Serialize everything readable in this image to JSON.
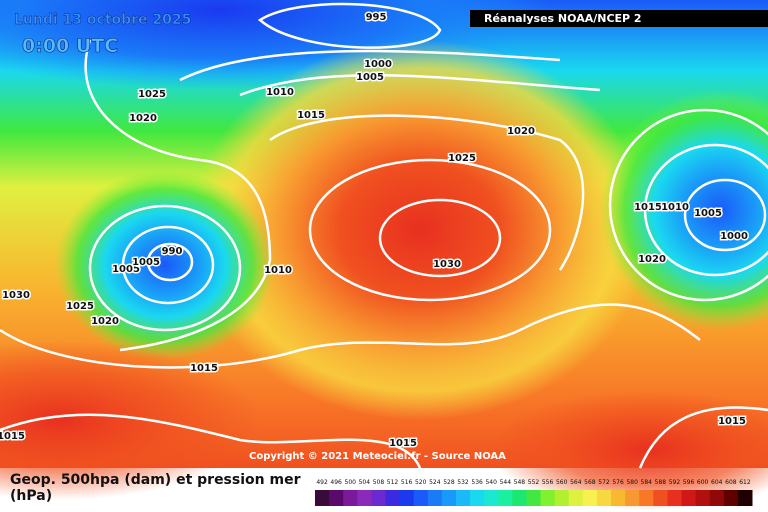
{
  "header": {
    "date": "Lundi 13 octobre 2025",
    "time": "0:00 UTC",
    "source_badge": "Réanalyses NOAA/NCEP 2"
  },
  "isobar_labels": [
    995,
    1000,
    1005,
    1010,
    1015,
    1020,
    1025,
    1020,
    1025,
    1015,
    1010,
    1005,
    1000,
    1020,
    990,
    1005,
    1005,
    1010,
    1030,
    1030,
    1025,
    1020,
    1015,
    1015,
    1015,
    1015
  ],
  "copyright": "Copyright © 2021 Meteociel.fr - Source NOAA",
  "legend": {
    "title": "Geop. 500hpa (dam) et pression mer (hPa)",
    "scale": [
      {
        "value": 492,
        "color": "#3a0a3a"
      },
      {
        "value": 496,
        "color": "#5a0a6a"
      },
      {
        "value": 500,
        "color": "#7a1a9a"
      },
      {
        "value": 504,
        "color": "#8a2aba"
      },
      {
        "value": 508,
        "color": "#6a2ad0"
      },
      {
        "value": 512,
        "color": "#3a2ae0"
      },
      {
        "value": 516,
        "color": "#1a3af0"
      },
      {
        "value": 520,
        "color": "#1a5af8"
      },
      {
        "value": 524,
        "color": "#1a7af8"
      },
      {
        "value": 528,
        "color": "#1a9af8"
      },
      {
        "value": 532,
        "color": "#1abaf8"
      },
      {
        "value": 536,
        "color": "#1ad8f0"
      },
      {
        "value": 540,
        "color": "#1ae8d0"
      },
      {
        "value": 544,
        "color": "#1af0a0"
      },
      {
        "value": 548,
        "color": "#1ae870"
      },
      {
        "value": 552,
        "color": "#40e840"
      },
      {
        "value": 556,
        "color": "#80f030"
      },
      {
        "value": 560,
        "color": "#b0f030"
      },
      {
        "value": 564,
        "color": "#e0f040"
      },
      {
        "value": 568,
        "color": "#f8f050"
      },
      {
        "value": 572,
        "color": "#f8d840"
      },
      {
        "value": 576,
        "color": "#f8b830"
      },
      {
        "value": 580,
        "color": "#f89830"
      },
      {
        "value": 584,
        "color": "#f87828"
      },
      {
        "value": 588,
        "color": "#f05020"
      },
      {
        "value": 592,
        "color": "#e83020"
      },
      {
        "value": 596,
        "color": "#d01818"
      },
      {
        "value": 600,
        "color": "#b01010"
      },
      {
        "value": 604,
        "color": "#900808"
      },
      {
        "value": 608,
        "color": "#600000"
      },
      {
        "value": 612,
        "color": "#200000"
      }
    ]
  }
}
